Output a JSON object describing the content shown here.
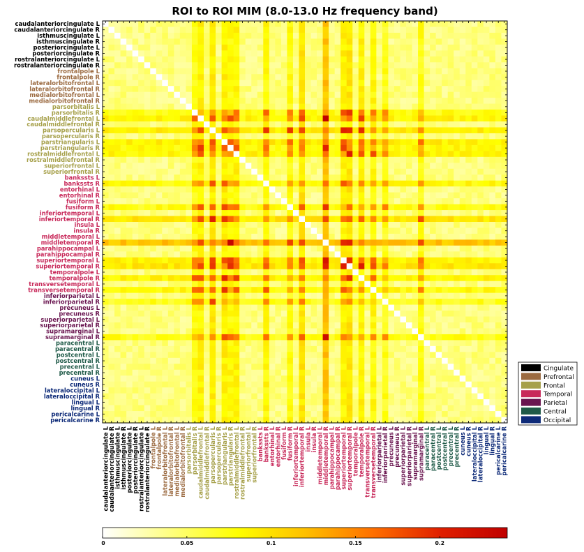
{
  "chart_data": {
    "type": "heatmap",
    "title": "ROI to ROI MIM (8.0-13.0 Hz frequency band)",
    "xlabel": "",
    "ylabel": "",
    "labels": [
      "caudalanteriorcingulate L",
      "caudalanteriorcingulate R",
      "isthmuscingulate L",
      "isthmuscingulate R",
      "posteriorcingulate L",
      "posteriorcingulate R",
      "rostralanteriorcingulate L",
      "rostralanteriorcingulate R",
      "frontalpole L",
      "frontalpole R",
      "lateralorbitofrontal L",
      "lateralorbitofrontal R",
      "medialorbitofrontal L",
      "medialorbitofrontal R",
      "parsorbitalis L",
      "parsorbitalis R",
      "caudalmiddlefrontal L",
      "caudalmiddlefrontal R",
      "parsopercularis L",
      "parsopercularis R",
      "parstriangularis L",
      "parstriangularis R",
      "rostralmiddlefrontal L",
      "rostralmiddlefrontal R",
      "superiorfrontal L",
      "superiorfrontal R",
      "bankssts L",
      "bankssts R",
      "entorhinal L",
      "entorhinal R",
      "fusiform L",
      "fusiform R",
      "inferiortemporal L",
      "inferiortemporal R",
      "insula L",
      "insula R",
      "middletemporal L",
      "middletemporal R",
      "parahippocampal L",
      "parahippocampal R",
      "superiortemporal L",
      "superiortemporal R",
      "temporalpole L",
      "temporalpole R",
      "transversetemporal L",
      "transversetemporal R",
      "inferiorparietal L",
      "inferiorparietal R",
      "precuneus L",
      "precuneus R",
      "superiorparietal L",
      "superiorparietal R",
      "supramarginal L",
      "supramarginal R",
      "paracentral L",
      "paracentral R",
      "postcentral L",
      "postcentral R",
      "precentral L",
      "precentral R",
      "cuneus L",
      "cuneus R",
      "lateraloccipital L",
      "lateraloccipital R",
      "lingual L",
      "lingual R",
      "pericalcarine L",
      "pericalcarine R"
    ],
    "groups": [
      {
        "name": "Cingulate",
        "color": "#000000",
        "count": 8
      },
      {
        "name": "Prefrontal",
        "color": "#9b6a40",
        "count": 6
      },
      {
        "name": "Frontal",
        "color": "#a6a04a",
        "count": 12
      },
      {
        "name": "Temporal",
        "color": "#c8295a",
        "count": 20
      },
      {
        "name": "Parietal",
        "color": "#6a1550",
        "count": 8
      },
      {
        "name": "Central",
        "color": "#1f5a48",
        "count": 6
      },
      {
        "name": "Occipital",
        "color": "#0d2a78",
        "count": 8
      }
    ],
    "base_value": 0.04,
    "hubs": [
      {
        "index": 15,
        "strength": 0.04
      },
      {
        "index": 16,
        "strength": 0.05
      },
      {
        "index": 18,
        "strength": 0.055
      },
      {
        "index": 20,
        "strength": 0.055
      },
      {
        "index": 21,
        "strength": 0.045
      },
      {
        "index": 22,
        "strength": 0.05
      },
      {
        "index": 27,
        "strength": 0.045
      },
      {
        "index": 31,
        "strength": 0.04
      },
      {
        "index": 33,
        "strength": 0.06
      },
      {
        "index": 37,
        "strength": 0.085
      },
      {
        "index": 40,
        "strength": 0.05
      },
      {
        "index": 41,
        "strength": 0.06
      },
      {
        "index": 43,
        "strength": 0.05
      },
      {
        "index": 45,
        "strength": 0.045
      },
      {
        "index": 47,
        "strength": 0.035
      },
      {
        "index": 53,
        "strength": 0.04
      }
    ],
    "hot_cells": [
      {
        "row": 37,
        "col": 41,
        "value": 0.2
      },
      {
        "row": 37,
        "col": 33,
        "value": 0.18
      },
      {
        "row": 37,
        "col": 43,
        "value": 0.17
      },
      {
        "row": 37,
        "col": 27,
        "value": 0.16
      },
      {
        "row": 41,
        "col": 33,
        "value": 0.17
      },
      {
        "row": 22,
        "col": 37,
        "value": 0.16
      },
      {
        "row": 20,
        "col": 37,
        "value": 0.15
      },
      {
        "row": 15,
        "col": 37,
        "value": 0.14
      },
      {
        "row": 18,
        "col": 37,
        "value": 0.15
      },
      {
        "row": 20,
        "col": 16,
        "value": 0.15
      },
      {
        "row": 22,
        "col": 18,
        "value": 0.14
      },
      {
        "row": 41,
        "col": 20,
        "value": 0.14
      },
      {
        "row": 33,
        "col": 22,
        "value": 0.14
      },
      {
        "row": 43,
        "col": 37,
        "value": 0.15
      },
      {
        "row": 45,
        "col": 37,
        "value": 0.13
      },
      {
        "row": 27,
        "col": 33,
        "value": 0.14
      },
      {
        "row": 53,
        "col": 16,
        "value": 0.13
      },
      {
        "row": 47,
        "col": 37,
        "value": 0.12
      }
    ],
    "diagonal_value": 0,
    "colorbar": {
      "min": 0,
      "max": 0.24,
      "ticks": [
        0,
        0.05,
        0.1,
        0.15,
        0.2
      ],
      "tick_labels": [
        "0",
        "0.05",
        "0.1",
        "0.15",
        "0.2"
      ]
    },
    "colormap": [
      "#ffffff",
      "#ffff80",
      "#ffff00",
      "#ffc000",
      "#ff7000",
      "#e02000",
      "#c00000"
    ],
    "legend": {
      "placement": "right",
      "entries": [
        "Cingulate",
        "Prefrontal",
        "Frontal",
        "Temporal",
        "Parietal",
        "Central",
        "Occipital"
      ]
    }
  }
}
